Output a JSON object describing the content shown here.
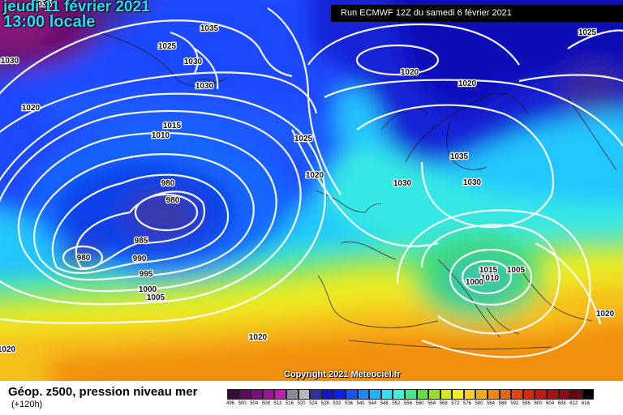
{
  "header": {
    "date": "jeudi 11 février 2021",
    "hour": "13:00 locale",
    "run": "Run ECMWF 12Z du samedi 6 février 2021"
  },
  "copyright": "Copyright 2021 Meteociel.fr",
  "footer": {
    "title": "Géop. z500, pression niveau mer",
    "subtitle": "(+120h)"
  },
  "legend": {
    "values": [
      "496",
      "500",
      "504",
      "508",
      "512",
      "516",
      "520",
      "524",
      "528",
      "532",
      "536",
      "540",
      "544",
      "548",
      "552",
      "556",
      "560",
      "564",
      "568",
      "572",
      "576",
      "580",
      "584",
      "588",
      "592",
      "596",
      "600",
      "604",
      "608",
      "612",
      "616"
    ],
    "colors": [
      "#3a0a3a",
      "#5c0a5c",
      "#7a0e7a",
      "#a0149a",
      "#c01cb4",
      "#8a8a9a",
      "#b6b6c6",
      "#3030a0",
      "#1414c8",
      "#0a20f0",
      "#1055ff",
      "#1a88ff",
      "#20b4ff",
      "#30e0ff",
      "#40f2d8",
      "#44e68a",
      "#60e040",
      "#9ae022",
      "#d2ea1a",
      "#f2ee22",
      "#f7cf1c",
      "#f5ac14",
      "#f08810",
      "#e8660c",
      "#e0440c",
      "#d42a0c",
      "#c21a10",
      "#a81014",
      "#8a0a14",
      "#6a0810",
      "#000000"
    ]
  },
  "isobar_labels": [
    "1035",
    "1035",
    "1025",
    "1030",
    "1030",
    "1030",
    "1025",
    "1010",
    "1020",
    "1020",
    "1020",
    "1015",
    "1010",
    "1025",
    "1020",
    "1030",
    "1035",
    "1030",
    "980",
    "980",
    "985",
    "990",
    "995",
    "980",
    "1000",
    "1005",
    "1015",
    "1010",
    "1005",
    "1000",
    "1020",
    "1020",
    "1020",
    "1025"
  ]
}
